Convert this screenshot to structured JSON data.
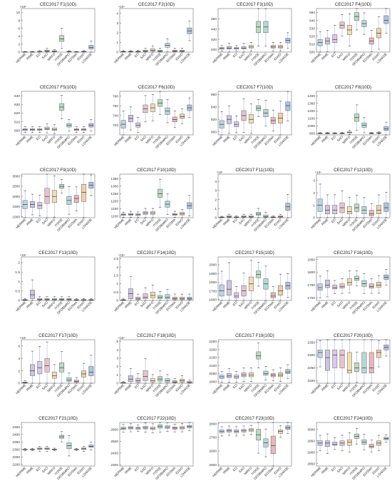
{
  "figure": {
    "categories": [
      "HERIME",
      "RIME",
      "EO",
      "SAO",
      "MRFO",
      "IYDSE",
      "DFDBMRO",
      "EOSMA",
      "IGWO",
      "LSHADE"
    ],
    "palette": [
      "#bcd3e8",
      "#cfc4e4",
      "#d9c8e8",
      "#e6c3cf",
      "#f2ddb0",
      "#b9dcc0",
      "#b5d8d8",
      "#e8b8b8",
      "#f3cfa8",
      "#a9c4e2"
    ]
  },
  "chart_data": [
    {
      "type": "box",
      "title": "CEC2017 F1(10D)",
      "exponent": "×10⁸",
      "ylim": [
        0,
        11
      ],
      "yticks": [
        0,
        2,
        4,
        6,
        8,
        10
      ],
      "medians": [
        0.05,
        0.05,
        0.1,
        0.3,
        0.2,
        3.3,
        0.1,
        0.05,
        0.1,
        1.2
      ],
      "q1": [
        0.02,
        0.02,
        0.05,
        0.15,
        0.1,
        2.7,
        0.05,
        0.02,
        0.05,
        0.8
      ],
      "q3": [
        0.08,
        0.08,
        0.2,
        0.5,
        0.35,
        4.2,
        0.2,
        0.08,
        0.2,
        1.7
      ]
    },
    {
      "type": "box",
      "title": "CEC2017 F2(10D)",
      "exponent": "×10⁴",
      "ylim": [
        0,
        4.5
      ],
      "yticks": [
        0,
        1,
        2,
        3,
        4
      ],
      "medians": [
        0.05,
        0.05,
        0.05,
        0.1,
        0.2,
        0.1,
        0.7,
        0.1,
        0.1,
        2.2
      ],
      "q1": [
        0.02,
        0.02,
        0.02,
        0.05,
        0.1,
        0.05,
        0.5,
        0.05,
        0.05,
        1.9
      ],
      "q3": [
        0.08,
        0.08,
        0.1,
        0.2,
        0.35,
        0.2,
        0.9,
        0.2,
        0.2,
        2.5
      ]
    },
    {
      "type": "box",
      "title": "CEC2017 F3(10D)",
      "ylim": [
        395,
        480
      ],
      "yticks": [
        400,
        420,
        440,
        460
      ],
      "medians": [
        402,
        403,
        402,
        403,
        405,
        444,
        444,
        405,
        405,
        418
      ],
      "q1": [
        401,
        401,
        401,
        401,
        403,
        433,
        433,
        403,
        403,
        413
      ],
      "q3": [
        404,
        406,
        404,
        406,
        408,
        455,
        455,
        408,
        408,
        422
      ]
    },
    {
      "type": "box",
      "title": "CEC2017 F4(10D)",
      "ylim": [
        500,
        555
      ],
      "yticks": [
        500,
        510,
        520,
        530,
        540,
        550
      ],
      "medians": [
        512,
        514,
        516,
        534,
        528,
        545,
        536,
        514,
        524,
        540
      ],
      "q1": [
        508,
        510,
        512,
        530,
        522,
        540,
        532,
        510,
        518,
        536
      ],
      "q3": [
        516,
        518,
        522,
        538,
        534,
        550,
        540,
        518,
        530,
        546
      ]
    },
    {
      "type": "box",
      "title": "CEC2017 F5(10D)",
      "ylim": [
        595,
        645
      ],
      "yticks": [
        600,
        610,
        620,
        630,
        640
      ],
      "medians": [
        601,
        601,
        601,
        602,
        601,
        627,
        606,
        601,
        601,
        606
      ],
      "q1": [
        600,
        600,
        600,
        601,
        600,
        623,
        604,
        600,
        600,
        604
      ],
      "q3": [
        602,
        602,
        602,
        604,
        603,
        631,
        608,
        602,
        602,
        608
      ]
    },
    {
      "type": "box",
      "title": "CEC2017 F6(10D)",
      "ylim": [
        700,
        790
      ],
      "yticks": [
        720,
        740,
        760,
        780
      ],
      "medians": [
        722,
        734,
        720,
        754,
        756,
        766,
        749,
        732,
        738,
        756
      ],
      "q1": [
        714,
        727,
        716,
        746,
        748,
        759,
        742,
        727,
        734,
        750
      ],
      "q3": [
        730,
        741,
        725,
        762,
        764,
        773,
        756,
        737,
        743,
        762
      ]
    },
    {
      "type": "box",
      "title": "CEC2017 F7(10D)",
      "ylim": [
        795,
        865
      ],
      "yticks": [
        800,
        820,
        840,
        860
      ],
      "medians": [
        812,
        820,
        812,
        826,
        820,
        838,
        830,
        818,
        822,
        842
      ],
      "q1": [
        806,
        813,
        808,
        818,
        814,
        834,
        824,
        813,
        814,
        834
      ],
      "q3": [
        818,
        826,
        816,
        834,
        828,
        842,
        836,
        823,
        830,
        848
      ]
    },
    {
      "type": "box",
      "title": "CEC2017 F8(10D)",
      "ylim": [
        880,
        1460
      ],
      "yticks": [
        900,
        1000,
        1100,
        1200,
        1300,
        1400
      ],
      "medians": [
        902,
        902,
        902,
        902,
        910,
        1110,
        1010,
        902,
        905,
        960
      ],
      "q1": [
        900,
        900,
        900,
        900,
        905,
        1060,
        980,
        900,
        902,
        940
      ],
      "q3": [
        904,
        905,
        904,
        905,
        920,
        1160,
        1040,
        905,
        910,
        990
      ]
    },
    {
      "type": "box",
      "title": "CEC2017 F9(10D)",
      "ylim": [
        950,
        3100
      ],
      "yticks": [
        1000,
        1500,
        2000,
        2500,
        3000
      ],
      "medians": [
        1600,
        1600,
        1550,
        2000,
        2000,
        2500,
        1800,
        1900,
        2200,
        2550
      ],
      "q1": [
        1400,
        1450,
        1400,
        1650,
        1700,
        2400,
        1600,
        1700,
        1750,
        2400
      ],
      "q3": [
        1800,
        1750,
        1700,
        2400,
        2300,
        2600,
        2000,
        2050,
        2600,
        2700
      ]
    },
    {
      "type": "box",
      "title": "CEC2017 F10(10D)",
      "ylim": [
        1090,
        1380
      ],
      "yticks": [
        1100,
        1150,
        1200,
        1250,
        1300,
        1350
      ],
      "medians": [
        1110,
        1112,
        1110,
        1120,
        1120,
        1250,
        1180,
        1112,
        1115,
        1170
      ],
      "q1": [
        1105,
        1106,
        1104,
        1112,
        1112,
        1225,
        1160,
        1106,
        1108,
        1150
      ],
      "q3": [
        1115,
        1118,
        1115,
        1130,
        1130,
        1280,
        1200,
        1118,
        1125,
        1190
      ]
    },
    {
      "type": "box",
      "title": "CEC2017 F11(10D)",
      "exponent": "×10⁷",
      "ylim": [
        0,
        4.8
      ],
      "yticks": [
        0,
        1,
        2,
        3,
        4
      ],
      "medians": [
        0.05,
        0.1,
        0.05,
        0.1,
        0.1,
        0.4,
        0.1,
        0.05,
        0.1,
        1.2
      ],
      "q1": [
        0.02,
        0.05,
        0.02,
        0.05,
        0.05,
        0.25,
        0.05,
        0.02,
        0.05,
        0.8
      ],
      "q3": [
        0.08,
        0.2,
        0.1,
        0.2,
        0.2,
        0.6,
        0.3,
        0.1,
        0.2,
        1.6
      ]
    },
    {
      "type": "box",
      "title": "CEC2017 F12(10D)",
      "exponent": "×10⁴",
      "ylim": [
        0,
        3.5
      ],
      "yticks": [
        0,
        1,
        2,
        3
      ],
      "medians": [
        1.0,
        0.6,
        0.6,
        0.8,
        0.5,
        0.8,
        0.6,
        0.3,
        0.6,
        0.8
      ],
      "q1": [
        0.5,
        0.3,
        0.3,
        0.4,
        0.3,
        0.5,
        0.3,
        0.15,
        0.3,
        0.5
      ],
      "q3": [
        1.5,
        1.0,
        1.0,
        1.2,
        0.9,
        1.1,
        0.9,
        0.6,
        1.0,
        1.2
      ]
    },
    {
      "type": "box",
      "title": "CEC2017 F13(10D)",
      "exponent": "×10⁴",
      "ylim": [
        0,
        2.3
      ],
      "yticks": [
        0,
        0.5,
        1,
        1.5,
        2
      ],
      "medians": [
        0.03,
        0.3,
        0.05,
        0.05,
        0.05,
        0.05,
        0.05,
        0.03,
        0.03,
        0.03
      ],
      "q1": [
        0.01,
        0.1,
        0.02,
        0.02,
        0.02,
        0.02,
        0.02,
        0.01,
        0.01,
        0.01
      ],
      "q3": [
        0.05,
        0.55,
        0.1,
        0.1,
        0.1,
        0.1,
        0.1,
        0.05,
        0.05,
        0.05
      ]
    },
    {
      "type": "box",
      "title": "CEC2017 F14(10D)",
      "exponent": "×10⁴",
      "ylim": [
        0,
        2.6
      ],
      "yticks": [
        0,
        0.5,
        1,
        1.5,
        2,
        2.5
      ],
      "medians": [
        0.03,
        0.4,
        0.1,
        0.2,
        0.3,
        0.2,
        0.2,
        0.1,
        0.1,
        0.1
      ],
      "q1": [
        0.01,
        0.1,
        0.05,
        0.1,
        0.15,
        0.1,
        0.1,
        0.05,
        0.05,
        0.05
      ],
      "q3": [
        0.05,
        0.7,
        0.2,
        0.4,
        0.5,
        0.3,
        0.35,
        0.2,
        0.2,
        0.2
      ]
    },
    {
      "type": "box",
      "title": "CEC2017 F15(10D)",
      "ylim": [
        1590,
        2090
      ],
      "yticks": [
        1600,
        1700,
        1800,
        1900,
        2000
      ],
      "medians": [
        1700,
        1720,
        1640,
        1700,
        1780,
        1890,
        1780,
        1640,
        1700,
        1760
      ],
      "q1": [
        1640,
        1650,
        1620,
        1640,
        1700,
        1850,
        1720,
        1620,
        1650,
        1720
      ],
      "q3": [
        1770,
        1820,
        1680,
        1760,
        1860,
        1930,
        1840,
        1680,
        1760,
        1800
      ]
    },
    {
      "type": "box",
      "title": "CEC2017 F16(10D)",
      "ylim": [
        1690,
        1860
      ],
      "yticks": [
        1700,
        1750,
        1800,
        1850
      ],
      "medians": [
        1740,
        1750,
        1740,
        1745,
        1760,
        1775,
        1755,
        1745,
        1750,
        1780
      ],
      "q1": [
        1730,
        1740,
        1735,
        1738,
        1750,
        1768,
        1745,
        1738,
        1742,
        1772
      ],
      "q3": [
        1755,
        1770,
        1750,
        1755,
        1775,
        1785,
        1768,
        1755,
        1762,
        1790
      ]
    },
    {
      "type": "box",
      "title": "CEC2017 F17(10D)",
      "exponent": "×10⁴",
      "ylim": [
        0,
        7
      ],
      "yticks": [
        0,
        2,
        4,
        6
      ],
      "medians": [
        0.1,
        2.0,
        2.5,
        2.8,
        1.2,
        2.5,
        0.5,
        0.3,
        1.5,
        1.8
      ],
      "q1": [
        0.05,
        1.2,
        1.5,
        1.8,
        0.8,
        1.8,
        0.3,
        0.15,
        1.0,
        1.2
      ],
      "q3": [
        0.2,
        3.0,
        3.5,
        4.0,
        1.8,
        3.3,
        0.9,
        0.5,
        2.0,
        2.7
      ]
    },
    {
      "type": "box",
      "title": "CEC2017 F18(10D)",
      "exponent": "×10⁴",
      "ylim": [
        0,
        5.2
      ],
      "yticks": [
        0,
        1,
        2,
        3,
        4,
        5
      ],
      "medians": [
        0.05,
        0.5,
        0.3,
        0.8,
        0.3,
        0.5,
        0.3,
        0.15,
        0.3,
        0.1
      ],
      "q1": [
        0.02,
        0.2,
        0.15,
        0.3,
        0.15,
        0.25,
        0.15,
        0.08,
        0.15,
        0.05
      ],
      "q3": [
        0.1,
        0.9,
        0.6,
        1.5,
        0.55,
        0.8,
        0.55,
        0.3,
        0.5,
        0.2
      ]
    },
    {
      "type": "box",
      "title": "CEC2017 F19(10D)",
      "ylim": [
        1990,
        2260
      ],
      "yticks": [
        2000,
        2050,
        2100,
        2150,
        2200,
        2250
      ],
      "medians": [
        2030,
        2035,
        2030,
        2040,
        2040,
        2160,
        2050,
        2040,
        2040,
        2060
      ],
      "q1": [
        2020,
        2025,
        2020,
        2030,
        2030,
        2140,
        2040,
        2030,
        2030,
        2050
      ],
      "q3": [
        2040,
        2050,
        2040,
        2055,
        2055,
        2185,
        2065,
        2050,
        2055,
        2075
      ]
    },
    {
      "type": "box",
      "title": "CEC2017 F20(10D)",
      "ylim": [
        2190,
        2360
      ],
      "yticks": [
        2200,
        2250,
        2300,
        2350
      ],
      "medians": [
        2310,
        2290,
        2300,
        2300,
        2240,
        2250,
        2250,
        2250,
        2310,
        2330
      ],
      "q1": [
        2290,
        2240,
        2250,
        2250,
        2230,
        2235,
        2230,
        2230,
        2290,
        2320
      ],
      "q3": [
        2320,
        2320,
        2320,
        2320,
        2310,
        2270,
        2310,
        2310,
        2320,
        2340
      ]
    },
    {
      "type": "box",
      "title": "CEC2017 F21(10D)",
      "ylim": [
        2190,
        2480
      ],
      "yticks": [
        2200,
        2250,
        2300,
        2350,
        2400,
        2450
      ],
      "medians": [
        2300,
        2300,
        2305,
        2305,
        2300,
        2385,
        2325,
        2300,
        2305,
        2320
      ],
      "q1": [
        2298,
        2298,
        2300,
        2300,
        2298,
        2375,
        2305,
        2298,
        2300,
        2315
      ],
      "q3": [
        2302,
        2302,
        2310,
        2310,
        2303,
        2395,
        2345,
        2302,
        2310,
        2330
      ]
    },
    {
      "type": "box",
      "title": "CEC2017 F22(10D)",
      "ylim": [
        2290,
        2660
      ],
      "yticks": [
        2300,
        2400,
        2500,
        2600
      ],
      "medians": [
        2610,
        2615,
        2612,
        2615,
        2610,
        2625,
        2620,
        2612,
        2615,
        2625
      ],
      "q1": [
        2600,
        2605,
        2603,
        2605,
        2600,
        2612,
        2610,
        2603,
        2605,
        2615
      ],
      "q3": [
        2620,
        2625,
        2620,
        2628,
        2622,
        2640,
        2632,
        2622,
        2625,
        2635
      ]
    },
    {
      "type": "box",
      "title": "CEC2017 F23(10D)",
      "ylim": [
        2490,
        2810
      ],
      "yticks": [
        2500,
        2600,
        2700,
        2800
      ],
      "medians": [
        2745,
        2750,
        2745,
        2750,
        2755,
        2720,
        2660,
        2640,
        2745,
        2770
      ],
      "q1": [
        2735,
        2740,
        2735,
        2740,
        2745,
        2680,
        2630,
        2580,
        2730,
        2760
      ],
      "q3": [
        2755,
        2760,
        2755,
        2760,
        2765,
        2760,
        2690,
        2710,
        2755,
        2785
      ]
    },
    {
      "type": "box",
      "title": "CEC2017 F24(10D)",
      "ylim": [
        2840,
        3030
      ],
      "yticks": [
        2850,
        2900,
        2950,
        3000
      ],
      "medians": [
        2940,
        2940,
        2935,
        2940,
        2945,
        2970,
        2945,
        2925,
        2940,
        2960
      ],
      "q1": [
        2930,
        2925,
        2930,
        2930,
        2930,
        2960,
        2935,
        2920,
        2930,
        2955
      ],
      "q3": [
        2950,
        2950,
        2945,
        2950,
        2955,
        2980,
        2955,
        2935,
        2950,
        2965
      ]
    }
  ]
}
